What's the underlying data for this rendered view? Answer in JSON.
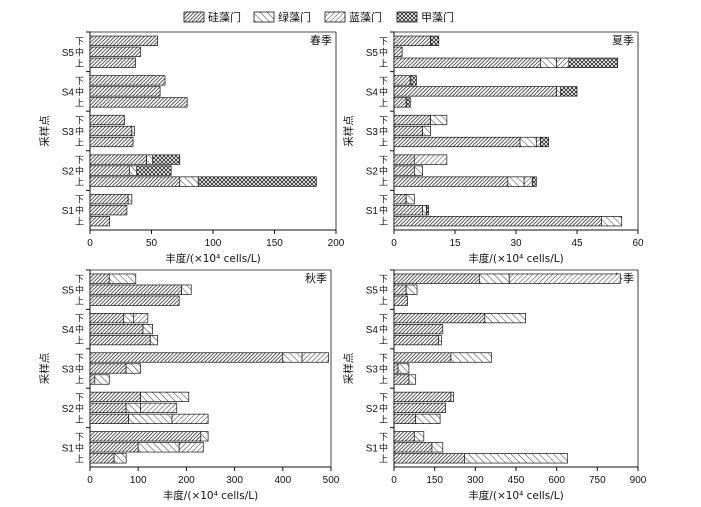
{
  "legend": {
    "items": [
      {
        "name": "硅藻门",
        "pattern": "dense"
      },
      {
        "name": "绿藻门",
        "pattern": "diag"
      },
      {
        "name": "蓝藻门",
        "pattern": "diag2"
      },
      {
        "name": "甲藻门",
        "pattern": "cross"
      }
    ]
  },
  "chart_data": [
    {
      "type": "bar",
      "orientation": "horizontal",
      "stacked": true,
      "title": "春季",
      "xlabel": "丰度/(×10⁴ cells/L)",
      "ylabel": "采样点",
      "xlim": [
        0,
        200
      ],
      "xticks": [
        0,
        50,
        100,
        150,
        200
      ],
      "sites": [
        "S1",
        "S2",
        "S3",
        "S4",
        "S5"
      ],
      "levels": [
        "上",
        "中",
        "下"
      ],
      "series_names": [
        "硅藻门",
        "绿藻门",
        "蓝藻门",
        "甲藻门"
      ],
      "bars": [
        {
          "site": "S1",
          "level": "上",
          "values": [
            16,
            0,
            0,
            0
          ]
        },
        {
          "site": "S1",
          "level": "中",
          "values": [
            30,
            0,
            0,
            0
          ]
        },
        {
          "site": "S1",
          "level": "下",
          "values": [
            31,
            3,
            0,
            0
          ]
        },
        {
          "site": "S2",
          "level": "上",
          "values": [
            73,
            15,
            0,
            96
          ]
        },
        {
          "site": "S2",
          "level": "中",
          "values": [
            32,
            6,
            0,
            28
          ]
        },
        {
          "site": "S2",
          "level": "下",
          "values": [
            46,
            5,
            0,
            22
          ]
        },
        {
          "site": "S3",
          "level": "上",
          "values": [
            35,
            0,
            0,
            0
          ]
        },
        {
          "site": "S3",
          "level": "中",
          "values": [
            34,
            2,
            0,
            0
          ]
        },
        {
          "site": "S3",
          "level": "下",
          "values": [
            28,
            0,
            0,
            0
          ]
        },
        {
          "site": "S4",
          "level": "上",
          "values": [
            79,
            0,
            0,
            0
          ]
        },
        {
          "site": "S4",
          "level": "中",
          "values": [
            57,
            0,
            0,
            0
          ]
        },
        {
          "site": "S4",
          "level": "下",
          "values": [
            61,
            0,
            0,
            0
          ]
        },
        {
          "site": "S5",
          "level": "上",
          "values": [
            37,
            0,
            0,
            0
          ]
        },
        {
          "site": "S5",
          "level": "中",
          "values": [
            41,
            0,
            0,
            0
          ]
        },
        {
          "site": "S5",
          "level": "下",
          "values": [
            55,
            0,
            0,
            0
          ]
        }
      ]
    },
    {
      "type": "bar",
      "orientation": "horizontal",
      "stacked": true,
      "title": "夏季",
      "xlabel": "丰度/(×10⁴ cells/L)",
      "ylabel": "采样点",
      "xlim": [
        0,
        60
      ],
      "xticks": [
        0,
        15,
        30,
        45,
        60
      ],
      "sites": [
        "S1",
        "S2",
        "S3",
        "S4",
        "S5"
      ],
      "levels": [
        "上",
        "中",
        "下"
      ],
      "series_names": [
        "硅藻门",
        "绿藻门",
        "蓝藻门",
        "甲藻门"
      ],
      "bars": [
        {
          "site": "S1",
          "level": "上",
          "values": [
            51,
            5,
            0,
            0
          ]
        },
        {
          "site": "S1",
          "level": "中",
          "values": [
            7,
            1,
            0,
            0.5
          ]
        },
        {
          "site": "S1",
          "level": "下",
          "values": [
            3,
            2,
            0,
            0
          ]
        },
        {
          "site": "S2",
          "level": "上",
          "values": [
            28,
            4,
            2,
            1
          ]
        },
        {
          "site": "S2",
          "level": "中",
          "values": [
            5,
            2,
            0,
            0
          ]
        },
        {
          "site": "S2",
          "level": "下",
          "values": [
            5,
            0,
            8,
            0
          ]
        },
        {
          "site": "S3",
          "level": "上",
          "values": [
            31,
            4,
            1,
            2
          ]
        },
        {
          "site": "S3",
          "level": "中",
          "values": [
            7,
            2,
            0,
            0
          ]
        },
        {
          "site": "S3",
          "level": "下",
          "values": [
            9,
            4,
            0,
            0
          ]
        },
        {
          "site": "S4",
          "level": "上",
          "values": [
            3,
            0,
            0,
            1
          ]
        },
        {
          "site": "S4",
          "level": "中",
          "values": [
            40,
            1,
            0,
            4
          ]
        },
        {
          "site": "S4",
          "level": "下",
          "values": [
            4,
            0,
            0,
            1.5
          ]
        },
        {
          "site": "S5",
          "level": "上",
          "values": [
            36,
            4,
            3,
            12
          ]
        },
        {
          "site": "S5",
          "level": "中",
          "values": [
            2,
            0,
            0,
            0
          ]
        },
        {
          "site": "S5",
          "level": "下",
          "values": [
            9,
            0,
            0,
            2
          ]
        }
      ]
    },
    {
      "type": "bar",
      "orientation": "horizontal",
      "stacked": true,
      "title": "秋季",
      "xlabel": "丰度/(×10⁴ cells/L)",
      "ylabel": "采样点",
      "xlim": [
        0,
        500
      ],
      "xticks": [
        0,
        100,
        200,
        300,
        400,
        500
      ],
      "sites": [
        "S1",
        "S2",
        "S3",
        "S4",
        "S5"
      ],
      "levels": [
        "上",
        "中",
        "下"
      ],
      "series_names": [
        "硅藻门",
        "绿藻门",
        "蓝藻门",
        "甲藻门"
      ],
      "bars": [
        {
          "site": "S1",
          "level": "上",
          "values": [
            50,
            25,
            0,
            0
          ]
        },
        {
          "site": "S1",
          "level": "中",
          "values": [
            100,
            85,
            50,
            0
          ]
        },
        {
          "site": "S1",
          "level": "下",
          "values": [
            230,
            15,
            0,
            0
          ]
        },
        {
          "site": "S2",
          "level": "上",
          "values": [
            80,
            90,
            75,
            0
          ]
        },
        {
          "site": "S2",
          "level": "中",
          "values": [
            75,
            30,
            75,
            0
          ]
        },
        {
          "site": "S2",
          "level": "下",
          "values": [
            105,
            100,
            0,
            0
          ]
        },
        {
          "site": "S3",
          "level": "上",
          "values": [
            10,
            30,
            0,
            0
          ]
        },
        {
          "site": "S3",
          "level": "中",
          "values": [
            75,
            30,
            0,
            0
          ]
        },
        {
          "site": "S3",
          "level": "下",
          "values": [
            400,
            40,
            55,
            0
          ]
        },
        {
          "site": "S4",
          "level": "上",
          "values": [
            125,
            15,
            0,
            0
          ]
        },
        {
          "site": "S4",
          "level": "中",
          "values": [
            110,
            20,
            0,
            0
          ]
        },
        {
          "site": "S4",
          "level": "下",
          "values": [
            70,
            20,
            30,
            0
          ]
        },
        {
          "site": "S5",
          "level": "上",
          "values": [
            185,
            0,
            0,
            0
          ]
        },
        {
          "site": "S5",
          "level": "中",
          "values": [
            190,
            20,
            0,
            0
          ]
        },
        {
          "site": "S5",
          "level": "下",
          "values": [
            40,
            55,
            0,
            0
          ]
        }
      ]
    },
    {
      "type": "bar",
      "orientation": "horizontal",
      "stacked": true,
      "title": "冬季",
      "xlabel": "丰度/(×10⁴ cells/L)",
      "ylabel": "采样点",
      "xlim": [
        0,
        900
      ],
      "xticks": [
        0,
        150,
        300,
        450,
        600,
        750,
        900
      ],
      "sites": [
        "S1",
        "S2",
        "S3",
        "S4",
        "S5"
      ],
      "levels": [
        "上",
        "中",
        "下"
      ],
      "series_names": [
        "硅藻门",
        "绿藻门",
        "蓝藻门",
        "甲藻门"
      ],
      "bars": [
        {
          "site": "S1",
          "level": "上",
          "values": [
            260,
            380,
            0,
            0
          ]
        },
        {
          "site": "S1",
          "level": "中",
          "values": [
            140,
            40,
            0,
            0
          ]
        },
        {
          "site": "S1",
          "level": "下",
          "values": [
            75,
            35,
            0,
            0
          ]
        },
        {
          "site": "S2",
          "level": "上",
          "values": [
            80,
            90,
            0,
            0
          ]
        },
        {
          "site": "S2",
          "level": "中",
          "values": [
            190,
            0,
            0,
            0
          ]
        },
        {
          "site": "S2",
          "level": "下",
          "values": [
            210,
            10,
            0,
            0
          ]
        },
        {
          "site": "S3",
          "level": "上",
          "values": [
            55,
            25,
            0,
            0
          ]
        },
        {
          "site": "S3",
          "level": "中",
          "values": [
            15,
            40,
            0,
            0
          ]
        },
        {
          "site": "S3",
          "level": "下",
          "values": [
            210,
            150,
            0,
            0
          ]
        },
        {
          "site": "S4",
          "level": "上",
          "values": [
            165,
            10,
            0,
            0
          ]
        },
        {
          "site": "S4",
          "level": "中",
          "values": [
            180,
            0,
            0,
            0
          ]
        },
        {
          "site": "S4",
          "level": "下",
          "values": [
            335,
            150,
            0,
            0
          ]
        },
        {
          "site": "S5",
          "level": "上",
          "values": [
            50,
            0,
            0,
            0
          ]
        },
        {
          "site": "S5",
          "level": "中",
          "values": [
            45,
            40,
            0,
            0
          ]
        },
        {
          "site": "S5",
          "level": "下",
          "values": [
            315,
            110,
            410,
            0
          ]
        }
      ]
    }
  ]
}
